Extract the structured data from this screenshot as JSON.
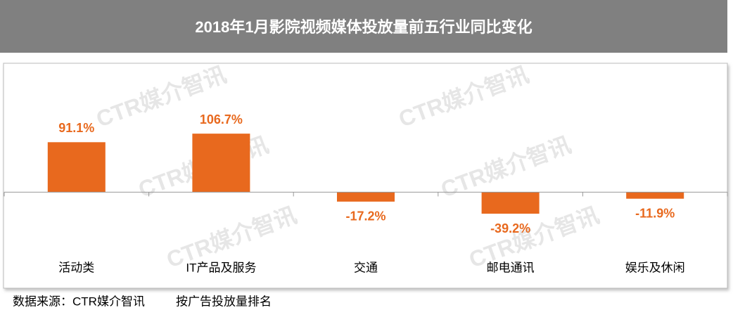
{
  "chart_data": {
    "type": "bar",
    "title": "2018年1月影院视频媒体投放量前五行业同比变化",
    "categories": [
      "活动类",
      "IT产品及服务",
      "交通",
      "邮电通讯",
      "娱乐及休闲"
    ],
    "values": [
      91.1,
      106.7,
      -17.2,
      -39.2,
      -11.9
    ],
    "value_labels": [
      "91.1%",
      "106.7%",
      "-17.2%",
      "-39.2%",
      "-11.9%"
    ],
    "color": "#e8691e",
    "ylim": [
      -175,
      235
    ],
    "watermark": "CTR媒介智讯",
    "source": "数据来源：CTR媒介智讯",
    "note": "按广告投放量排名"
  }
}
